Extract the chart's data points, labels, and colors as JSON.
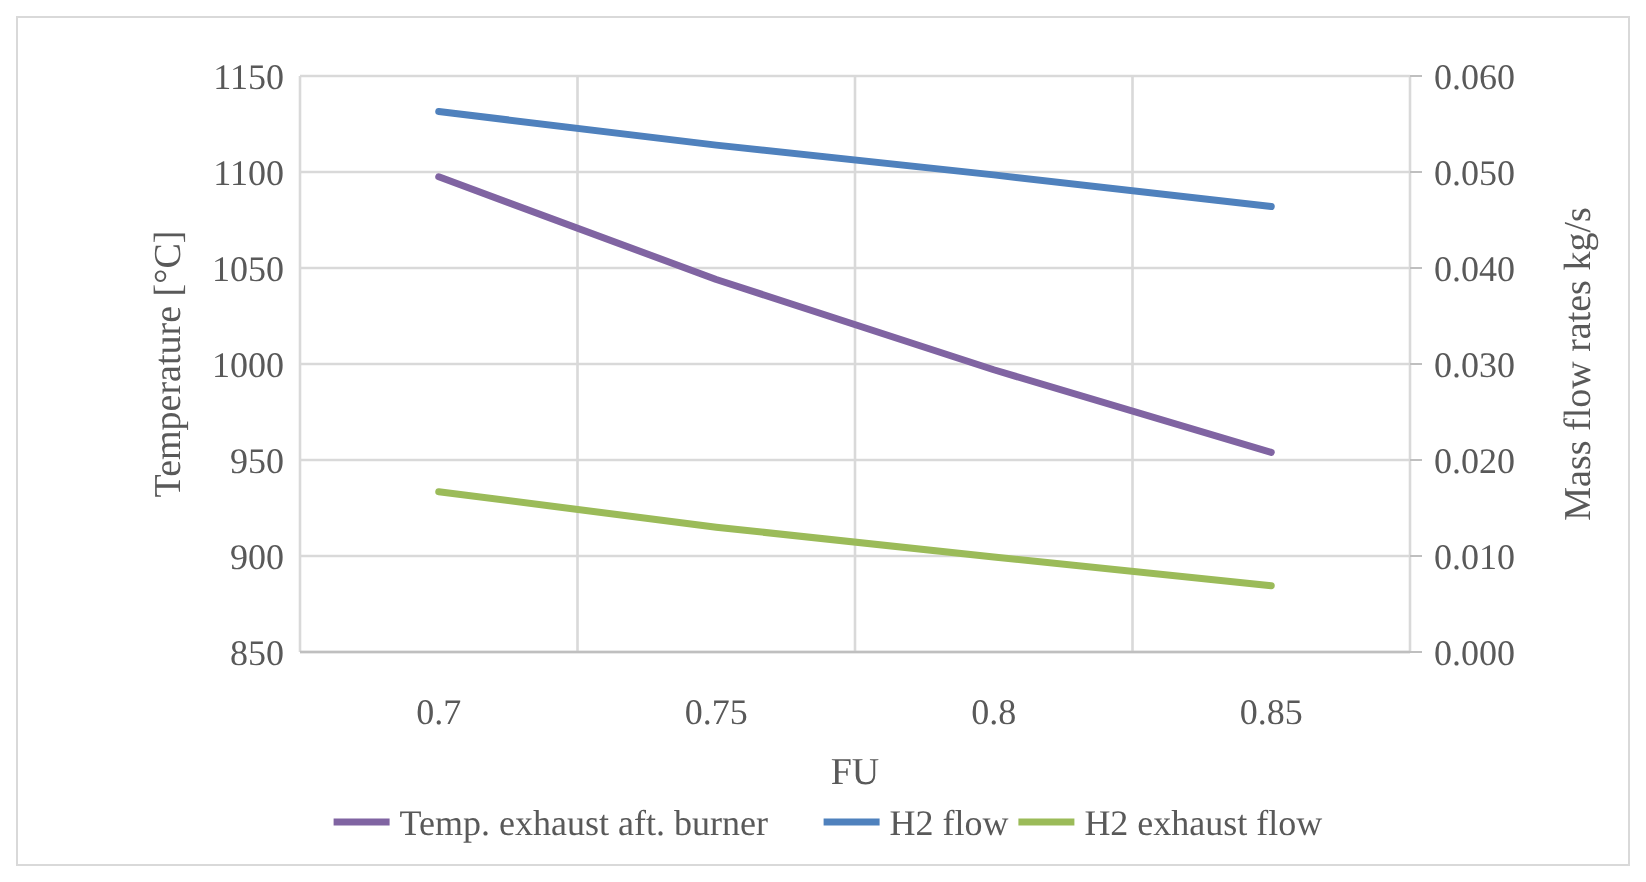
{
  "chart_data": {
    "type": "line",
    "xlabel": "FU",
    "ylabel": "Temperature [°C]",
    "y2label": "Mass flow rates kg/s",
    "categories": [
      "0.7",
      "0.75",
      "0.8",
      "0.85"
    ],
    "series": [
      {
        "name": "Temp. exhaust aft. burner",
        "color": "#8064a2",
        "values": [
          1097.5,
          1044,
          997,
          954
        ]
      },
      {
        "name": "H2 flow",
        "color": "#4f81bd",
        "axis": "y2",
        "values": [
          0.0563,
          0.0528,
          0.0497,
          0.0464
        ]
      },
      {
        "name": "H2 exhaust flow",
        "color": "#9bbb59",
        "axis": "y2",
        "values": [
          0.0167,
          0.013,
          0.0099,
          0.0069
        ]
      }
    ],
    "ylim": [
      850,
      1150
    ],
    "yticks": [
      850,
      900,
      950,
      1000,
      1050,
      1100,
      1150
    ],
    "y2lim": [
      0,
      0.06
    ],
    "y2ticks": [
      {
        "value": 0,
        "label": "0.000"
      },
      {
        "value": 0.01,
        "label": "0.010"
      },
      {
        "value": 0.02,
        "label": "0.020"
      },
      {
        "value": 0.03,
        "label": "0.030"
      },
      {
        "value": 0.04,
        "label": "0.040"
      },
      {
        "value": 0.05,
        "label": "0.050"
      },
      {
        "value": 0.06,
        "label": "0.060"
      }
    ],
    "grid": true,
    "legend": "bottom",
    "marker": "none",
    "line_style": "solid"
  }
}
